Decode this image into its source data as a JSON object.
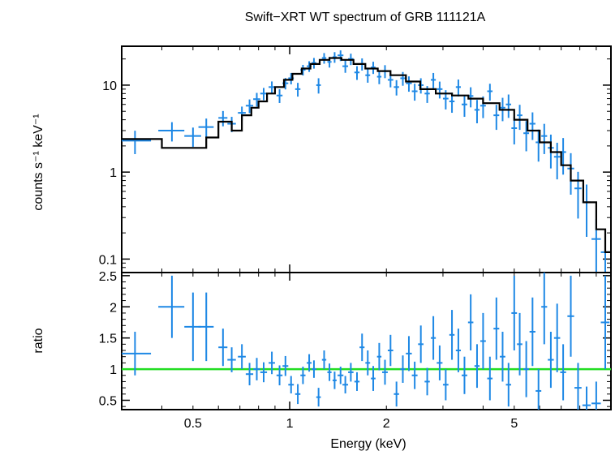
{
  "chart_data": {
    "title": "Swift−XRT WT spectrum of GRB 111121A",
    "xlabel": "Energy (keV)",
    "x_scale": "log",
    "xlim": [
      0.3,
      10
    ],
    "x_ticks": [
      0.5,
      1,
      2,
      5
    ],
    "x_tick_labels": [
      "0.5",
      "1",
      "2",
      "5"
    ],
    "colors": {
      "data": "#1e88e5",
      "model": "#000000",
      "ratio_line": "#22dd22"
    },
    "panels": [
      {
        "type": "scatter",
        "ylabel": "counts s⁻¹ keV⁻¹",
        "y_scale": "log",
        "ylim": [
          0.07,
          28
        ],
        "y_ticks": [
          0.1,
          1,
          10
        ],
        "y_tick_labels": [
          "0.1",
          "1",
          "10"
        ],
        "series": [
          {
            "kind": "points_with_errors",
            "x": [
              0.33,
              0.43,
              0.5,
              0.55,
              0.62,
              0.66,
              0.71,
              0.75,
              0.79,
              0.83,
              0.88,
              0.93,
              0.97,
              1.01,
              1.06,
              1.1,
              1.15,
              1.19,
              1.23,
              1.28,
              1.33,
              1.38,
              1.44,
              1.49,
              1.55,
              1.62,
              1.68,
              1.75,
              1.82,
              1.9,
              1.98,
              2.06,
              2.15,
              2.25,
              2.35,
              2.45,
              2.56,
              2.68,
              2.8,
              2.93,
              3.06,
              3.2,
              3.35,
              3.5,
              3.66,
              3.83,
              4.0,
              4.2,
              4.4,
              4.6,
              4.8,
              5.0,
              5.2,
              5.45,
              5.7,
              5.95,
              6.2,
              6.5,
              6.8,
              7.1,
              7.5,
              7.9,
              8.4,
              9.0,
              9.6
            ],
            "y": [
              2.3,
              3.0,
              2.6,
              3.3,
              4.2,
              3.6,
              4.8,
              5.8,
              6.9,
              8.0,
              9.5,
              7.6,
              10.5,
              12.0,
              9.0,
              15.0,
              16.5,
              18.0,
              10.0,
              20.5,
              18.5,
              21.0,
              22.0,
              16.5,
              20.0,
              14.0,
              17.5,
              13.0,
              16.0,
              12.5,
              14.5,
              11.5,
              9.5,
              12.0,
              10.5,
              8.5,
              10.0,
              8.0,
              11.5,
              9.0,
              7.0,
              6.5,
              9.5,
              6.0,
              7.5,
              5.2,
              5.8,
              8.5,
              4.5,
              5.5,
              6.0,
              3.2,
              4.5,
              2.8,
              3.6,
              2.2,
              2.6,
              1.9,
              1.5,
              1.7,
              1.1,
              0.65,
              0.45,
              0.17,
              0.12
            ],
            "xerr_lo": [
              0.03,
              0.04,
              0.03,
              0.03,
              0.02,
              0.02,
              0.02,
              0.02,
              0.02,
              0.02,
              0.02,
              0.02,
              0.02,
              0.02,
              0.02,
              0.02,
              0.02,
              0.02,
              0.02,
              0.02,
              0.02,
              0.02,
              0.03,
              0.03,
              0.03,
              0.03,
              0.03,
              0.03,
              0.03,
              0.03,
              0.04,
              0.04,
              0.04,
              0.04,
              0.05,
              0.05,
              0.05,
              0.05,
              0.05,
              0.06,
              0.06,
              0.06,
              0.06,
              0.07,
              0.07,
              0.07,
              0.08,
              0.08,
              0.09,
              0.09,
              0.09,
              0.1,
              0.1,
              0.11,
              0.12,
              0.12,
              0.13,
              0.14,
              0.15,
              0.15,
              0.18,
              0.2,
              0.25,
              0.3,
              0.3
            ],
            "xerr_hi": [
              0.04,
              0.04,
              0.03,
              0.03,
              0.02,
              0.02,
              0.02,
              0.02,
              0.02,
              0.02,
              0.02,
              0.02,
              0.02,
              0.02,
              0.02,
              0.02,
              0.02,
              0.02,
              0.02,
              0.02,
              0.02,
              0.02,
              0.03,
              0.03,
              0.03,
              0.03,
              0.03,
              0.03,
              0.03,
              0.03,
              0.04,
              0.04,
              0.04,
              0.04,
              0.05,
              0.05,
              0.05,
              0.05,
              0.05,
              0.06,
              0.06,
              0.06,
              0.06,
              0.07,
              0.07,
              0.07,
              0.08,
              0.08,
              0.09,
              0.09,
              0.09,
              0.1,
              0.1,
              0.11,
              0.12,
              0.12,
              0.13,
              0.14,
              0.15,
              0.15,
              0.18,
              0.2,
              0.25,
              0.3,
              0.3
            ],
            "yerr_frac": [
              0.3,
              0.25,
              0.25,
              0.25,
              0.2,
              0.2,
              0.18,
              0.18,
              0.18,
              0.16,
              0.16,
              0.18,
              0.15,
              0.15,
              0.18,
              0.14,
              0.14,
              0.14,
              0.2,
              0.14,
              0.14,
              0.14,
              0.14,
              0.16,
              0.15,
              0.18,
              0.16,
              0.18,
              0.16,
              0.18,
              0.17,
              0.18,
              0.2,
              0.18,
              0.2,
              0.22,
              0.2,
              0.22,
              0.2,
              0.22,
              0.25,
              0.26,
              0.22,
              0.28,
              0.26,
              0.3,
              0.28,
              0.22,
              0.32,
              0.3,
              0.3,
              0.35,
              0.32,
              0.38,
              0.35,
              0.4,
              0.38,
              0.42,
              0.45,
              0.45,
              0.5,
              0.55,
              0.6,
              0.7,
              0.75
            ]
          },
          {
            "kind": "model_step",
            "x_edges": [
              0.3,
              0.4,
              0.55,
              0.6,
              0.66,
              0.71,
              0.76,
              0.8,
              0.85,
              0.9,
              0.96,
              1.02,
              1.09,
              1.16,
              1.24,
              1.33,
              1.45,
              1.58,
              1.72,
              1.88,
              2.06,
              2.3,
              2.55,
              2.85,
              3.2,
              3.6,
              4.0,
              4.5,
              5.0,
              5.5,
              6.0,
              6.5,
              7.0,
              7.5,
              8.2,
              9.0,
              9.6,
              10.0
            ],
            "y": [
              2.4,
              1.9,
              2.5,
              3.8,
              3.0,
              4.5,
              5.5,
              6.5,
              8.0,
              9.5,
              11.5,
              13.5,
              15.5,
              17.5,
              19.5,
              20.5,
              19.5,
              17.5,
              15.5,
              14.5,
              13.0,
              11.0,
              9.0,
              8.0,
              7.6,
              7.0,
              6.2,
              5.2,
              4.0,
              3.0,
              2.2,
              1.7,
              1.2,
              0.8,
              0.45,
              0.22,
              0.12
            ]
          }
        ]
      },
      {
        "type": "scatter",
        "ylabel": "ratio",
        "y_scale": "linear",
        "ylim": [
          0.35,
          2.55
        ],
        "y_ticks": [
          0.5,
          1,
          1.5,
          2,
          2.5
        ],
        "y_tick_labels": [
          "0.5",
          "1",
          "1.5",
          "2",
          "2.5"
        ],
        "series": [
          {
            "kind": "reference_line",
            "y": 1
          },
          {
            "kind": "points_with_errors",
            "x": [
              0.33,
              0.43,
              0.5,
              0.55,
              0.62,
              0.66,
              0.71,
              0.75,
              0.79,
              0.83,
              0.88,
              0.93,
              0.97,
              1.01,
              1.06,
              1.1,
              1.15,
              1.19,
              1.23,
              1.28,
              1.33,
              1.38,
              1.44,
              1.49,
              1.55,
              1.62,
              1.68,
              1.75,
              1.82,
              1.9,
              1.98,
              2.06,
              2.15,
              2.25,
              2.35,
              2.45,
              2.56,
              2.68,
              2.8,
              2.93,
              3.06,
              3.2,
              3.35,
              3.5,
              3.66,
              3.83,
              4.0,
              4.2,
              4.4,
              4.6,
              4.8,
              5.0,
              5.2,
              5.45,
              5.7,
              5.95,
              6.2,
              6.5,
              6.8,
              7.1,
              7.5,
              7.9,
              8.4,
              9.0,
              9.6
            ],
            "y": [
              1.25,
              2.0,
              1.68,
              1.68,
              1.35,
              1.15,
              1.2,
              0.92,
              1.0,
              0.95,
              1.1,
              0.9,
              1.05,
              0.75,
              0.6,
              0.9,
              1.1,
              1.0,
              0.55,
              1.15,
              0.95,
              0.82,
              0.9,
              0.75,
              0.95,
              0.8,
              1.35,
              1.1,
              0.85,
              1.2,
              0.95,
              1.3,
              0.6,
              1.0,
              1.25,
              0.9,
              1.4,
              0.8,
              1.5,
              1.1,
              0.75,
              1.55,
              1.3,
              0.9,
              1.75,
              1.05,
              1.45,
              0.85,
              1.65,
              1.2,
              0.75,
              1.9,
              1.4,
              1.0,
              1.6,
              0.65,
              2.0,
              1.15,
              1.5,
              0.95,
              1.85,
              0.7,
              0.42,
              0.45,
              1.75
            ],
            "xerr_lo": [
              0.03,
              0.04,
              0.03,
              0.03,
              0.02,
              0.02,
              0.02,
              0.02,
              0.02,
              0.02,
              0.02,
              0.02,
              0.02,
              0.02,
              0.02,
              0.02,
              0.02,
              0.02,
              0.02,
              0.02,
              0.02,
              0.02,
              0.03,
              0.03,
              0.03,
              0.03,
              0.03,
              0.03,
              0.03,
              0.03,
              0.04,
              0.04,
              0.04,
              0.04,
              0.05,
              0.05,
              0.05,
              0.05,
              0.05,
              0.06,
              0.06,
              0.06,
              0.06,
              0.07,
              0.07,
              0.07,
              0.08,
              0.08,
              0.09,
              0.09,
              0.09,
              0.1,
              0.1,
              0.11,
              0.12,
              0.12,
              0.13,
              0.14,
              0.15,
              0.15,
              0.18,
              0.2,
              0.25,
              0.3,
              0.3
            ],
            "xerr_hi": [
              0.04,
              0.04,
              0.03,
              0.03,
              0.02,
              0.02,
              0.02,
              0.02,
              0.02,
              0.02,
              0.02,
              0.02,
              0.02,
              0.02,
              0.02,
              0.02,
              0.02,
              0.02,
              0.02,
              0.02,
              0.02,
              0.02,
              0.03,
              0.03,
              0.03,
              0.03,
              0.03,
              0.03,
              0.03,
              0.03,
              0.04,
              0.04,
              0.04,
              0.04,
              0.05,
              0.05,
              0.05,
              0.05,
              0.05,
              0.06,
              0.06,
              0.06,
              0.06,
              0.07,
              0.07,
              0.07,
              0.08,
              0.08,
              0.09,
              0.09,
              0.09,
              0.1,
              0.1,
              0.11,
              0.12,
              0.12,
              0.13,
              0.14,
              0.15,
              0.15,
              0.18,
              0.2,
              0.25,
              0.3,
              0.3
            ],
            "yerr": [
              0.35,
              0.5,
              0.55,
              0.55,
              0.3,
              0.2,
              0.2,
              0.18,
              0.18,
              0.16,
              0.18,
              0.16,
              0.16,
              0.14,
              0.16,
              0.14,
              0.14,
              0.14,
              0.15,
              0.15,
              0.14,
              0.14,
              0.14,
              0.14,
              0.15,
              0.15,
              0.22,
              0.2,
              0.2,
              0.22,
              0.2,
              0.25,
              0.2,
              0.22,
              0.28,
              0.22,
              0.3,
              0.22,
              0.35,
              0.28,
              0.25,
              0.4,
              0.35,
              0.3,
              0.45,
              0.35,
              0.45,
              0.35,
              0.5,
              0.4,
              0.35,
              0.6,
              0.5,
              0.45,
              0.55,
              0.35,
              0.6,
              0.45,
              0.55,
              0.45,
              0.65,
              0.4,
              0.3,
              0.35,
              0.75
            ]
          }
        ]
      }
    ]
  }
}
